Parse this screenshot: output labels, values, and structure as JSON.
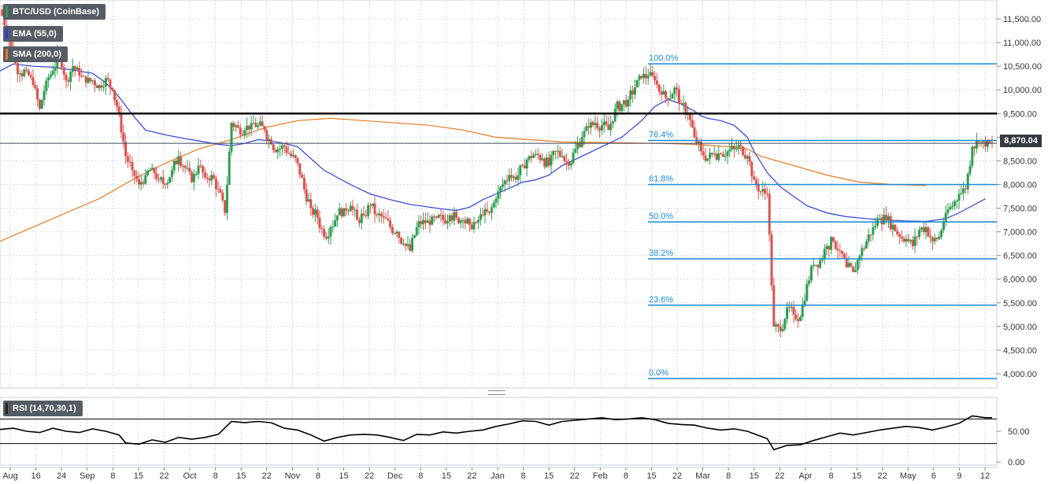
{
  "chart_data": [
    {
      "type": "candlestick",
      "title": "BTC/USD (CoinBase)",
      "indicators": [
        {
          "name": "EMA (55,0)",
          "color": "#2b3fd6"
        },
        {
          "name": "SMA (200,0)",
          "color": "#e8761c"
        }
      ],
      "last_price": "8,870.04",
      "ylim": [
        3700,
        11900
      ],
      "y_ticks": [
        "11,500.00",
        "11,000.00",
        "10,500.00",
        "10,000.00",
        "9,500.00",
        "9,000.00",
        "8,500.00",
        "8,000.00",
        "7,500.00",
        "7,000.00",
        "6,500.00",
        "6,000.00",
        "5,500.00",
        "5,000.00",
        "4,500.00",
        "4,000.00"
      ],
      "x_ticks": [
        "Aug",
        "16",
        "24",
        "Sep",
        "8",
        "15",
        "22",
        "Oct",
        "8",
        "15",
        "22",
        "Nov",
        "8",
        "15",
        "22",
        "Dec",
        "8",
        "15",
        "22",
        "Jan",
        "8",
        "15",
        "22",
        "Feb",
        "8",
        "15",
        "22",
        "Mar",
        "8",
        "15",
        "22",
        "Apr",
        "8",
        "15",
        "22",
        "May",
        "6",
        "9",
        "12"
      ],
      "horizontal_line": 9500,
      "current_price_line": 8870.04,
      "fibonacci": [
        {
          "label": "100.0%",
          "value": 10550
        },
        {
          "label": "76.4%",
          "value": 8930
        },
        {
          "label": "61.8%",
          "value": 8000
        },
        {
          "label": "50.0%",
          "value": 7210
        },
        {
          "label": "38.2%",
          "value": 6430
        },
        {
          "label": "23.6%",
          "value": 5450
        },
        {
          "label": "0.0%",
          "value": 3900
        }
      ],
      "close_path": [
        [
          0,
          11700
        ],
        [
          3,
          11300
        ],
        [
          6,
          10650
        ],
        [
          9,
          10350
        ],
        [
          12,
          10400
        ],
        [
          15,
          10100
        ],
        [
          18,
          9600
        ],
        [
          21,
          10200
        ],
        [
          24,
          10400
        ],
        [
          27,
          10800
        ],
        [
          30,
          10200
        ],
        [
          33,
          10500
        ],
        [
          36,
          10300
        ],
        [
          39,
          10150
        ],
        [
          42,
          10200
        ],
        [
          45,
          10100
        ],
        [
          48,
          10250
        ],
        [
          51,
          10000
        ],
        [
          54,
          9500
        ],
        [
          57,
          8600
        ],
        [
          60,
          8300
        ],
        [
          63,
          8000
        ],
        [
          66,
          8200
        ],
        [
          69,
          8350
        ],
        [
          72,
          8100
        ],
        [
          75,
          8000
        ],
        [
          78,
          8300
        ],
        [
          81,
          8600
        ],
        [
          84,
          8350
        ],
        [
          87,
          8050
        ],
        [
          90,
          8400
        ],
        [
          93,
          8150
        ],
        [
          96,
          8200
        ],
        [
          99,
          7900
        ],
        [
          102,
          7400
        ],
        [
          105,
          9300
        ],
        [
          108,
          9200
        ],
        [
          111,
          9150
        ],
        [
          114,
          9300
        ],
        [
          117,
          9250
        ],
        [
          120,
          9150
        ],
        [
          123,
          8850
        ],
        [
          126,
          8750
        ],
        [
          129,
          8800
        ],
        [
          132,
          8600
        ],
        [
          135,
          8450
        ],
        [
          138,
          7900
        ],
        [
          141,
          7500
        ],
        [
          144,
          7300
        ],
        [
          147,
          6900
        ],
        [
          150,
          7100
        ],
        [
          153,
          7350
        ],
        [
          156,
          7500
        ],
        [
          159,
          7550
        ],
        [
          162,
          7250
        ],
        [
          165,
          7350
        ],
        [
          168,
          7550
        ],
        [
          171,
          7350
        ],
        [
          174,
          7300
        ],
        [
          177,
          7100
        ],
        [
          180,
          7000
        ],
        [
          183,
          6750
        ],
        [
          186,
          6600
        ],
        [
          189,
          7100
        ],
        [
          192,
          7250
        ],
        [
          195,
          7150
        ],
        [
          198,
          7300
        ],
        [
          201,
          7250
        ],
        [
          204,
          7350
        ],
        [
          207,
          7300
        ],
        [
          210,
          7250
        ],
        [
          213,
          7150
        ],
        [
          216,
          7200
        ],
        [
          219,
          7350
        ],
        [
          222,
          7400
        ],
        [
          225,
          7700
        ],
        [
          228,
          8000
        ],
        [
          231,
          8200
        ],
        [
          234,
          8100
        ],
        [
          237,
          8400
        ],
        [
          240,
          8600
        ],
        [
          243,
          8650
        ],
        [
          246,
          8550
        ],
        [
          249,
          8400
        ],
        [
          252,
          8700
        ],
        [
          255,
          8600
        ],
        [
          258,
          8400
        ],
        [
          261,
          8750
        ],
        [
          264,
          9000
        ],
        [
          267,
          9200
        ],
        [
          270,
          9300
        ],
        [
          273,
          9250
        ],
        [
          276,
          9150
        ],
        [
          279,
          9600
        ],
        [
          282,
          9700
        ],
        [
          285,
          9800
        ],
        [
          288,
          10050
        ],
        [
          291,
          10250
        ],
        [
          294,
          10300
        ],
        [
          297,
          10200
        ],
        [
          300,
          9900
        ],
        [
          303,
          9800
        ],
        [
          306,
          10050
        ],
        [
          309,
          9700
        ],
        [
          312,
          9500
        ],
        [
          315,
          9000
        ],
        [
          318,
          8700
        ],
        [
          321,
          8550
        ],
        [
          324,
          8650
        ],
        [
          327,
          8650
        ],
        [
          330,
          8700
        ],
        [
          333,
          8750
        ],
        [
          336,
          8800
        ],
        [
          339,
          8600
        ],
        [
          342,
          8100
        ],
        [
          345,
          7850
        ],
        [
          348,
          7800
        ],
        [
          351,
          5000
        ],
        [
          354,
          4900
        ],
        [
          357,
          5400
        ],
        [
          360,
          5250
        ],
        [
          363,
          5200
        ],
        [
          366,
          5900
        ],
        [
          369,
          6300
        ],
        [
          372,
          6400
        ],
        [
          375,
          6700
        ],
        [
          378,
          6800
        ],
        [
          381,
          6600
        ],
        [
          384,
          6250
        ],
        [
          387,
          6150
        ],
        [
          390,
          6500
        ],
        [
          393,
          6800
        ],
        [
          396,
          7100
        ],
        [
          399,
          7300
        ],
        [
          402,
          7250
        ],
        [
          405,
          7150
        ],
        [
          408,
          6900
        ],
        [
          411,
          6850
        ],
        [
          414,
          6700
        ],
        [
          417,
          7050
        ],
        [
          420,
          7100
        ],
        [
          423,
          6800
        ],
        [
          426,
          6900
        ],
        [
          429,
          7400
        ],
        [
          432,
          7550
        ],
        [
          435,
          7800
        ],
        [
          438,
          7900
        ],
        [
          441,
          8800
        ],
        [
          444,
          8900
        ],
        [
          447,
          8800
        ],
        [
          450,
          8870
        ]
      ],
      "ema_path": [
        [
          0,
          10400
        ],
        [
          6,
          10550
        ],
        [
          15,
          10500
        ],
        [
          24,
          10480
        ],
        [
          33,
          10420
        ],
        [
          42,
          10350
        ],
        [
          48,
          10150
        ],
        [
          54,
          9850
        ],
        [
          60,
          9480
        ],
        [
          66,
          9150
        ],
        [
          75,
          9050
        ],
        [
          84,
          8970
        ],
        [
          93,
          8900
        ],
        [
          99,
          8850
        ],
        [
          105,
          8820
        ],
        [
          111,
          8870
        ],
        [
          117,
          8950
        ],
        [
          123,
          8920
        ],
        [
          129,
          8870
        ],
        [
          135,
          8800
        ],
        [
          141,
          8550
        ],
        [
          147,
          8300
        ],
        [
          153,
          8150
        ],
        [
          159,
          8000
        ],
        [
          168,
          7800
        ],
        [
          177,
          7680
        ],
        [
          186,
          7580
        ],
        [
          195,
          7520
        ],
        [
          201,
          7480
        ],
        [
          207,
          7450
        ],
        [
          213,
          7520
        ],
        [
          219,
          7680
        ],
        [
          225,
          7800
        ],
        [
          231,
          7920
        ],
        [
          237,
          8050
        ],
        [
          243,
          8100
        ],
        [
          249,
          8200
        ],
        [
          255,
          8400
        ],
        [
          264,
          8600
        ],
        [
          273,
          8800
        ],
        [
          282,
          9000
        ],
        [
          291,
          9350
        ],
        [
          297,
          9650
        ],
        [
          303,
          9800
        ],
        [
          309,
          9700
        ],
        [
          315,
          9550
        ],
        [
          318,
          9450
        ],
        [
          321,
          9400
        ],
        [
          327,
          9350
        ],
        [
          333,
          9250
        ],
        [
          339,
          9000
        ],
        [
          342,
          8700
        ],
        [
          348,
          8250
        ],
        [
          354,
          7950
        ],
        [
          360,
          7750
        ],
        [
          366,
          7550
        ],
        [
          375,
          7400
        ],
        [
          384,
          7320
        ],
        [
          393,
          7280
        ],
        [
          402,
          7250
        ],
        [
          411,
          7230
        ],
        [
          420,
          7220
        ],
        [
          429,
          7280
        ],
        [
          435,
          7400
        ],
        [
          441,
          7550
        ],
        [
          447,
          7700
        ]
      ],
      "sma_path": [
        [
          0,
          6800
        ],
        [
          15,
          7100
        ],
        [
          30,
          7400
        ],
        [
          45,
          7700
        ],
        [
          60,
          8100
        ],
        [
          75,
          8450
        ],
        [
          90,
          8750
        ],
        [
          105,
          8950
        ],
        [
          120,
          9200
        ],
        [
          135,
          9350
        ],
        [
          150,
          9400
        ],
        [
          165,
          9350
        ],
        [
          180,
          9300
        ],
        [
          195,
          9250
        ],
        [
          210,
          9150
        ],
        [
          225,
          9000
        ],
        [
          240,
          8950
        ],
        [
          255,
          8900
        ],
        [
          270,
          8890
        ],
        [
          285,
          8880
        ],
        [
          300,
          8870
        ],
        [
          315,
          8850
        ],
        [
          330,
          8800
        ],
        [
          339,
          8750
        ],
        [
          345,
          8600
        ],
        [
          360,
          8400
        ],
        [
          375,
          8200
        ],
        [
          390,
          8050
        ],
        [
          405,
          8000
        ],
        [
          420,
          7980
        ]
      ],
      "x_span": 450
    },
    {
      "type": "line",
      "title": "RSI (14,70,30,1)",
      "ylim": [
        0,
        100
      ],
      "y_ticks": [
        "50.00",
        "0.00"
      ],
      "levels": [
        70,
        30
      ],
      "rsi_path": [
        [
          0,
          53
        ],
        [
          6,
          55
        ],
        [
          12,
          50
        ],
        [
          18,
          48
        ],
        [
          24,
          55
        ],
        [
          30,
          50
        ],
        [
          36,
          48
        ],
        [
          42,
          54
        ],
        [
          48,
          50
        ],
        [
          54,
          44
        ],
        [
          57,
          31
        ],
        [
          63,
          29
        ],
        [
          69,
          36
        ],
        [
          75,
          32
        ],
        [
          81,
          40
        ],
        [
          87,
          37
        ],
        [
          93,
          40
        ],
        [
          99,
          45
        ],
        [
          105,
          66
        ],
        [
          111,
          64
        ],
        [
          117,
          66
        ],
        [
          123,
          64
        ],
        [
          129,
          55
        ],
        [
          135,
          52
        ],
        [
          141,
          44
        ],
        [
          147,
          34
        ],
        [
          153,
          40
        ],
        [
          159,
          44
        ],
        [
          165,
          45
        ],
        [
          171,
          44
        ],
        [
          177,
          40
        ],
        [
          183,
          35
        ],
        [
          189,
          45
        ],
        [
          195,
          44
        ],
        [
          201,
          49
        ],
        [
          207,
          47
        ],
        [
          213,
          50
        ],
        [
          219,
          52
        ],
        [
          225,
          58
        ],
        [
          231,
          62
        ],
        [
          237,
          67
        ],
        [
          243,
          66
        ],
        [
          249,
          60
        ],
        [
          255,
          66
        ],
        [
          261,
          68
        ],
        [
          267,
          70
        ],
        [
          273,
          72
        ],
        [
          279,
          69
        ],
        [
          285,
          70
        ],
        [
          291,
          72
        ],
        [
          297,
          69
        ],
        [
          303,
          63
        ],
        [
          309,
          61
        ],
        [
          315,
          60
        ],
        [
          321,
          55
        ],
        [
          327,
          52
        ],
        [
          333,
          54
        ],
        [
          339,
          50
        ],
        [
          345,
          42
        ],
        [
          348,
          38
        ],
        [
          351,
          20
        ],
        [
          357,
          27
        ],
        [
          363,
          28
        ],
        [
          369,
          35
        ],
        [
          375,
          41
        ],
        [
          381,
          47
        ],
        [
          387,
          44
        ],
        [
          393,
          48
        ],
        [
          399,
          52
        ],
        [
          405,
          55
        ],
        [
          411,
          58
        ],
        [
          417,
          56
        ],
        [
          423,
          52
        ],
        [
          429,
          57
        ],
        [
          435,
          63
        ],
        [
          441,
          75
        ],
        [
          447,
          72
        ],
        [
          450,
          72
        ]
      ],
      "x_span": 450
    }
  ],
  "colors": {
    "up": "#2e9e4f",
    "down": "#d9534f",
    "fib": "#1a8ad4",
    "ema": "#2b3fd6",
    "sma": "#e8761c",
    "grid": "#d5dbe3"
  },
  "legend": {
    "main": "BTC/USD (CoinBase)",
    "ema": "EMA (55,0)",
    "sma": "SMA (200,0)",
    "rsi": "RSI (14,70,30,1)"
  }
}
